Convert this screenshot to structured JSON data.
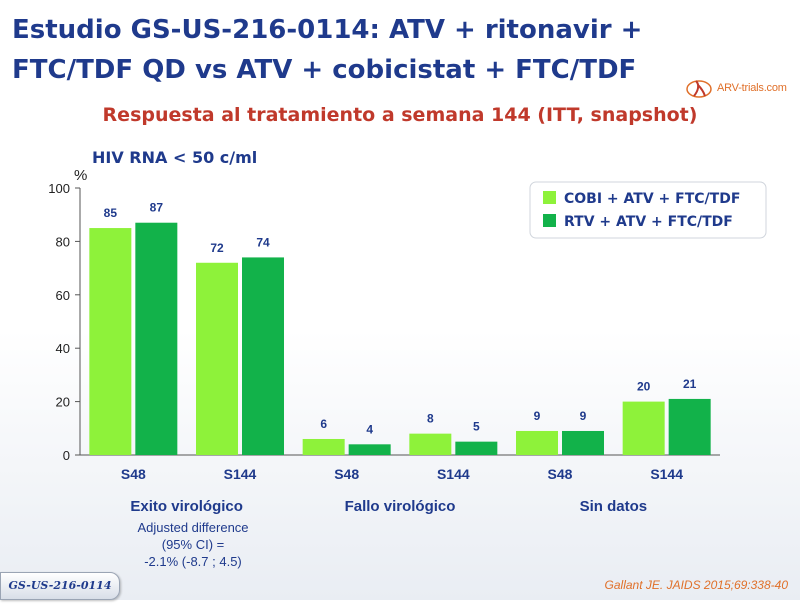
{
  "title": {
    "line1": "Estudio GS-US-216-0114: ATV + ritonavir +",
    "line2": "FTC/TDF QD vs ATV + cobicistat + FTC/TDF"
  },
  "logo_text": "ARV-trials.com",
  "subtitle": "Respuesta al tratamiento a semana 144 (ITT, snapshot)",
  "footer": {
    "reference": "Gallant JE. JAIDS 2015;69:338-40",
    "study_badge": "GS-US-216-0114"
  },
  "colors": {
    "cobi": "#8ef23a",
    "rtv": "#12b24a",
    "title": "#1f3a8c",
    "subtitle": "#c0392b",
    "reference": "#e0702a"
  },
  "chart_data": {
    "type": "bar",
    "ylabel": "%",
    "inner_title": "HIV RNA < 50 c/ml",
    "ylim": [
      0,
      100
    ],
    "yticks": [
      "0",
      "20",
      "40",
      "60",
      "80",
      "100"
    ],
    "grid": false,
    "legend_position": "top-right",
    "categories": [
      "S48",
      "S144",
      "S48",
      "S144",
      "S48",
      "S144"
    ],
    "groups": [
      "Exito virológico",
      "Fallo virológico",
      "Sin  datos"
    ],
    "series": [
      {
        "name": "COBI + ATV + FTC/TDF",
        "values": [
          85,
          72,
          6,
          8,
          9,
          20
        ]
      },
      {
        "name": "RTV + ATV + FTC/TDF",
        "values": [
          87,
          74,
          4,
          5,
          9,
          21
        ]
      }
    ],
    "annotation": [
      "Adjusted difference",
      "(95% CI) =",
      "-2.1% (-8.7 ; 4.5)"
    ]
  }
}
